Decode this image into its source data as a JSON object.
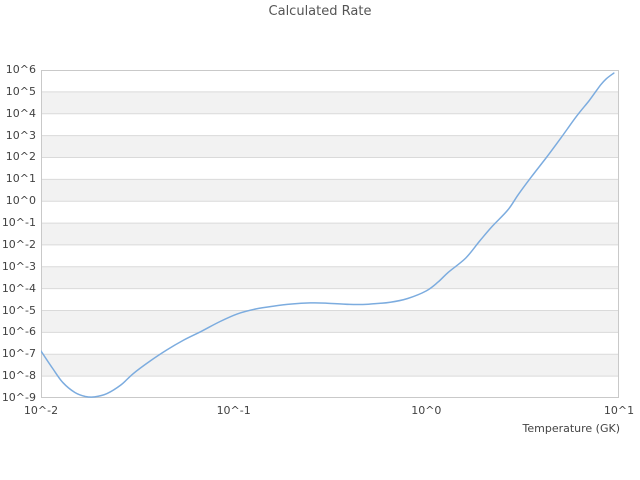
{
  "title": "Calculated Rate",
  "axes": {
    "x_title": "Temperature (GK)",
    "x_tick_labels": [
      "10^-2",
      "10^-1",
      "10^0",
      "10^1"
    ],
    "y_tick_labels": [
      "10^6",
      "10^5",
      "10^4",
      "10^3",
      "10^2",
      "10^1",
      "10^0",
      "10^-1",
      "10^-2",
      "10^-3",
      "10^-4",
      "10^-5",
      "10^-6",
      "10^-7",
      "10^-8",
      "10^-9"
    ]
  },
  "colors": {
    "line": "#7cacdf",
    "band_gray": "#f2f2f2",
    "band_white": "#ffffff",
    "gridline": "#dadada",
    "border": "#c9c9c9",
    "title_text": "#555555",
    "tick_text": "#424242"
  },
  "chart_data": {
    "type": "line",
    "title": "Calculated Rate",
    "xlabel": "Temperature (GK)",
    "ylabel": "",
    "x_scale": "log",
    "y_scale": "log",
    "xlim": [
      0.01,
      10
    ],
    "ylim": [
      1e-09,
      1000000.0
    ],
    "grid": "horizontal gridlines at each decade with alternating light-gray bands; no vertical gridlines",
    "legend": "none",
    "series": [
      {
        "name": "Calculated Rate",
        "x": [
          0.01,
          0.0115,
          0.013,
          0.015,
          0.017,
          0.019,
          0.022,
          0.026,
          0.03,
          0.037,
          0.045,
          0.055,
          0.068,
          0.085,
          0.105,
          0.13,
          0.16,
          0.2,
          0.25,
          0.3,
          0.4,
          0.5,
          0.65,
          0.8,
          1.0,
          1.15,
          1.3,
          1.6,
          1.9,
          2.2,
          2.65,
          3.0,
          3.5,
          4.2,
          5.0,
          6.0,
          7.0,
          8.0,
          8.6,
          9.4
        ],
        "log10_y": [
          -6.85,
          -7.65,
          -8.3,
          -8.75,
          -8.93,
          -8.95,
          -8.8,
          -8.4,
          -7.9,
          -7.3,
          -6.8,
          -6.35,
          -5.95,
          -5.5,
          -5.15,
          -4.93,
          -4.8,
          -4.7,
          -4.65,
          -4.66,
          -4.72,
          -4.71,
          -4.62,
          -4.45,
          -4.1,
          -3.7,
          -3.25,
          -2.6,
          -1.8,
          -1.15,
          -0.4,
          0.3,
          1.1,
          2.0,
          2.9,
          3.87,
          4.6,
          5.3,
          5.6,
          5.86
        ]
      }
    ]
  }
}
